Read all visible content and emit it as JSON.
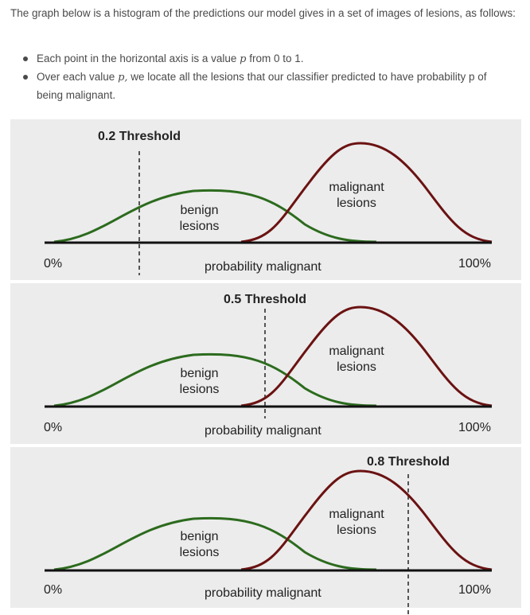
{
  "intro": {
    "text": "The graph below is a histogram of the predictions our model gives in a set of images of lesions, as follows:"
  },
  "bullets": [
    {
      "before": "Each point in the horizontal axis is a value ",
      "math": "p",
      "after": " from 0 to 1."
    },
    {
      "before": "Over each value ",
      "math": "p,",
      "after": " we locate all the lesions that our classifier predicted to have probability p of being malignant."
    }
  ],
  "figure": {
    "colors": {
      "benign": "#2c6b1e",
      "malignant": "#6b1212",
      "axis": "#111111",
      "threshold": "#555555",
      "panel_bg": "#ececec"
    },
    "panels": [
      {
        "threshold_label": "0.2 Threshold",
        "threshold_value": 0.2,
        "left_label": "0%",
        "right_label": "100%",
        "axis_label": "probability malignant",
        "benign_label": "benign\nlesions",
        "malignant_label": "malignant\nlesions"
      },
      {
        "threshold_label": "0.5 Threshold",
        "threshold_value": 0.5,
        "left_label": "0%",
        "right_label": "100%",
        "axis_label": "probability malignant",
        "benign_label": "benign\nlesions",
        "malignant_label": "malignant\nlesions"
      },
      {
        "threshold_label": "0.8 Threshold",
        "threshold_value": 0.8,
        "left_label": "0%",
        "right_label": "100%",
        "axis_label": "probability malignant",
        "benign_label": "benign\nlesions",
        "malignant_label": "malignant\nlesions"
      }
    ]
  }
}
